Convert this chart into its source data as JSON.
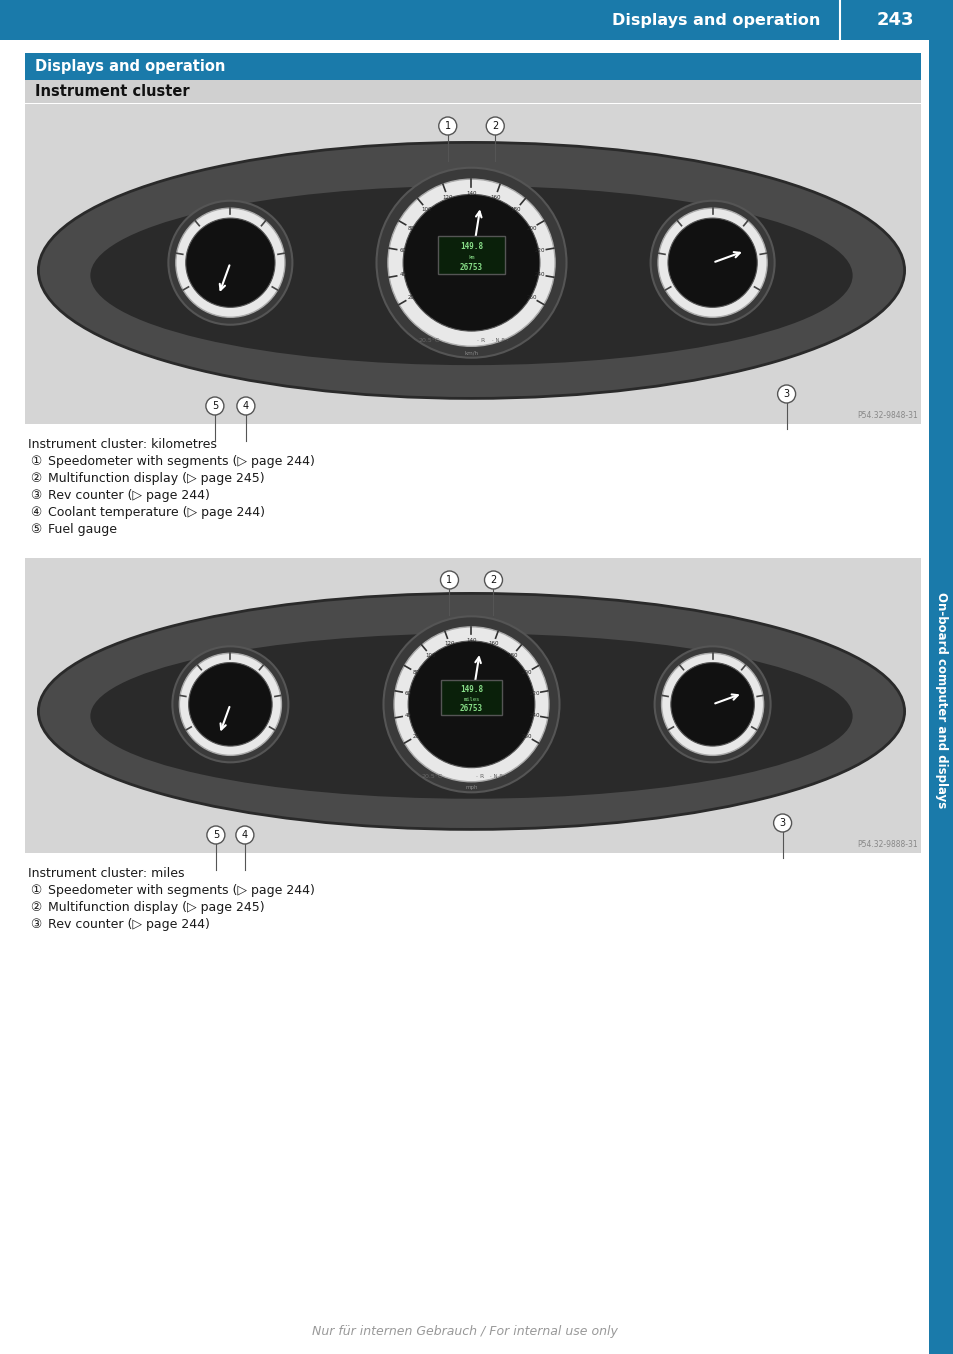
{
  "header_bg_color": "#1a7aaa",
  "header_text": "Displays and operation",
  "header_page": "243",
  "section1_bg": "#1a7aaa",
  "section1_text": "Displays and operation",
  "section2_bg": "#d0d0d0",
  "section2_text": "Instrument cluster",
  "sidebar_bg": "#1a7aaa",
  "sidebar_text": "On-board computer and displays",
  "caption1": "Instrument cluster: kilometres",
  "items1": [
    "Speedometer with segments (▷ page 244)",
    "Multifunction display (▷ page 245)",
    "Rev counter (▷ page 244)",
    "Coolant temperature (▷ page 244)",
    "Fuel gauge"
  ],
  "caption2": "Instrument cluster: miles",
  "items2": [
    "Speedometer with segments (▷ page 244)",
    "Multifunction display (▷ page 245)",
    "Rev counter (▷ page 244)"
  ],
  "footer_text": "Nur für internen Gebrauch / For internal use only",
  "bg_color": "#ffffff",
  "body_text_color": "#1a1a1a",
  "img1_credit": "P54.32-9848-31",
  "img2_credit": "P54.32-9888-31",
  "callout_nums_1": [
    "1",
    "2",
    "3",
    "4",
    "5"
  ],
  "callout_nums_2": [
    "1",
    "2",
    "3",
    "4",
    "5"
  ]
}
